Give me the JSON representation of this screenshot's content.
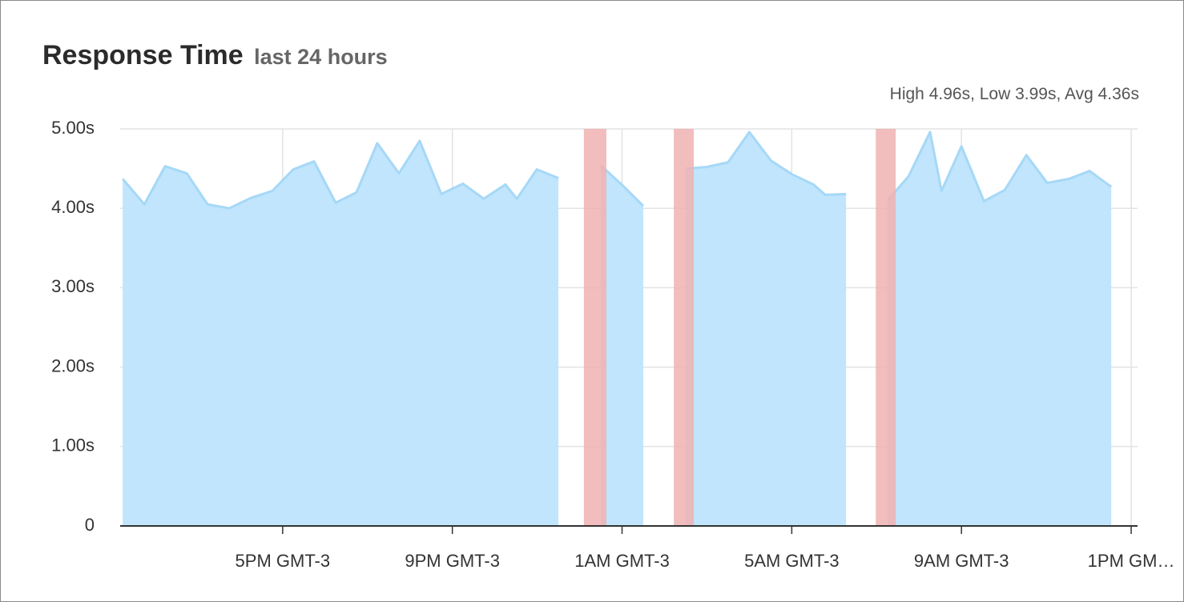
{
  "title": "Response Time",
  "subtitle": "last 24 hours",
  "stats": "High 4.96s, Low 3.99s, Avg 4.36s",
  "chart_data": {
    "type": "area",
    "x": [
      13.23,
      13.74,
      14.23,
      14.74,
      15.23,
      15.74,
      16.25,
      16.76,
      17.25,
      17.74,
      18.25,
      18.74,
      19.23,
      19.74,
      20.23,
      20.74,
      21.25,
      21.74,
      22.25,
      22.52,
      22.99,
      23.5,
      24.0,
      24.5,
      24.99,
      25.5,
      26.0,
      26.5,
      26.99,
      27.5,
      28.0,
      28.51,
      29.0,
      29.51,
      29.79,
      30.28,
      30.77,
      31.26,
      31.75,
      32.26,
      32.53,
      33.0,
      33.53,
      34.02,
      34.53,
      35.02,
      35.53,
      36.02,
      36.53
    ],
    "series": [
      {
        "name": "Response Time",
        "color": "#a6d8f7",
        "fill": "#c0e5fc",
        "values": [
          4.37,
          4.05,
          4.53,
          4.44,
          4.05,
          4.0,
          4.13,
          4.22,
          4.49,
          4.59,
          4.07,
          4.2,
          4.82,
          4.44,
          4.85,
          4.18,
          4.31,
          4.12,
          4.3,
          4.12,
          4.49,
          4.38,
          null,
          4.54,
          4.3,
          4.03,
          null,
          4.5,
          4.52,
          4.58,
          4.96,
          4.6,
          4.43,
          4.3,
          4.17,
          4.18,
          null,
          4.1,
          4.4,
          4.96,
          4.22,
          4.78,
          4.09,
          4.23,
          4.67,
          4.32,
          4.37,
          4.47,
          4.27
        ]
      }
    ],
    "incidents": {
      "color": "#f0b2b2",
      "spans": [
        [
          24.1,
          24.63
        ],
        [
          26.22,
          26.69
        ],
        [
          30.98,
          31.45
        ]
      ]
    },
    "xlim": [
      13.17,
      37.15
    ],
    "xticks": [
      {
        "value": 17,
        "label": "5PM GMT-3"
      },
      {
        "value": 21,
        "label": "9PM GMT-3"
      },
      {
        "value": 25,
        "label": "1AM GMT-3"
      },
      {
        "value": 29,
        "label": "5AM GMT-3"
      },
      {
        "value": 33,
        "label": "9AM GMT-3"
      },
      {
        "value": 37,
        "label": "1PM GM…"
      }
    ],
    "ylim": [
      0,
      5
    ],
    "yticks": [
      0,
      {
        "value": 1,
        "label": "1.00s"
      },
      {
        "value": 2,
        "label": "2.00s"
      },
      {
        "value": 3,
        "label": "3.00s"
      },
      {
        "value": 4,
        "label": "4.00s"
      },
      {
        "value": 5,
        "label": "5.00s"
      }
    ],
    "grid": true
  }
}
